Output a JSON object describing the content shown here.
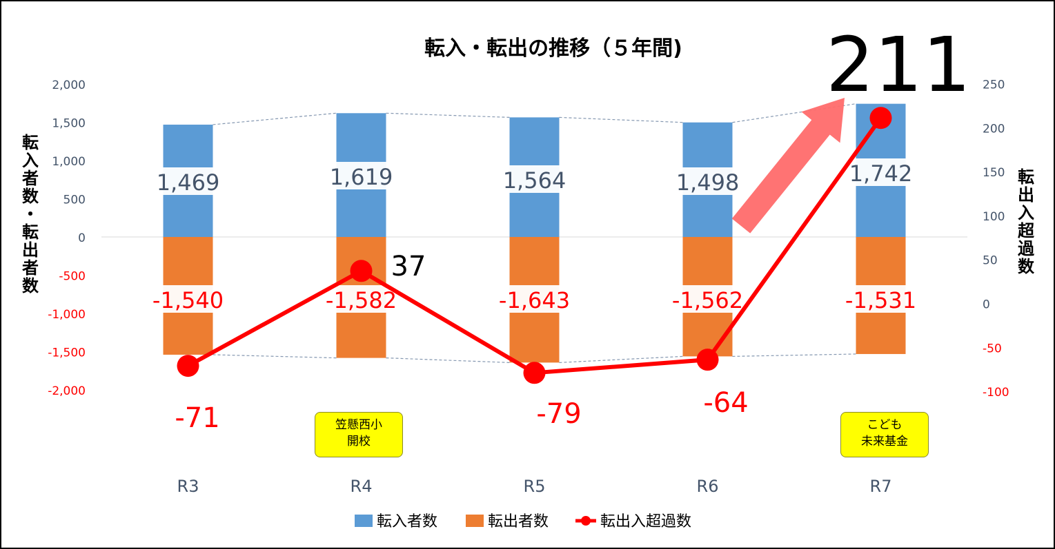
{
  "chart_data": {
    "type": "bar",
    "title": "転入・転出の推移（５年間)",
    "categories": [
      "R3",
      "R4",
      "R5",
      "R6",
      "R7"
    ],
    "series": [
      {
        "name": "転入者数",
        "type": "bar",
        "axis": "left",
        "color": "#5B9BD5",
        "values": [
          1469,
          1619,
          1564,
          1498,
          1742
        ]
      },
      {
        "name": "転出者数",
        "type": "bar",
        "axis": "left",
        "color": "#ED7D31",
        "values": [
          -1540,
          -1582,
          -1643,
          -1562,
          -1531
        ]
      },
      {
        "name": "転出入超過数",
        "type": "line",
        "axis": "right",
        "color": "#FF0000",
        "values": [
          -71,
          37,
          -79,
          -64,
          211
        ]
      }
    ],
    "y_left": {
      "title": "転入者数・転出者数",
      "range": [
        -2000,
        2000
      ],
      "ticks": [
        2000,
        1500,
        1000,
        500,
        0,
        -500,
        -1000,
        -1500,
        -2000
      ],
      "tick_labels": [
        "2,000",
        "1,500",
        "1,000",
        "500",
        "0",
        "-500",
        "-1,000",
        "-1,500",
        "-2,000"
      ]
    },
    "y_right": {
      "title": "転出入超過数",
      "range": [
        -100,
        250
      ],
      "ticks": [
        250,
        200,
        150,
        100,
        50,
        0,
        -50,
        -100
      ],
      "tick_labels": [
        "250",
        "200",
        "150",
        "100",
        "50",
        "0",
        "-50",
        "-100"
      ]
    },
    "bar_labels_in": [
      "1,469",
      "1,619",
      "1,564",
      "1,498",
      "1,742"
    ],
    "bar_labels_out": [
      "-1,540",
      "-1,582",
      "-1,643",
      "-1,562",
      "-1,531"
    ],
    "line_labels": [
      "-71",
      "37",
      "-79",
      "-64",
      "211"
    ],
    "grid": false,
    "legend_position": "bottom"
  },
  "annotations": {
    "callout_r4": [
      "笠懸西小",
      "開校"
    ],
    "callout_r7": [
      "こども",
      "未来基金"
    ]
  },
  "colors": {
    "inflow": "#5B9BD5",
    "outflow": "#ED7D31",
    "net": "#FF0000",
    "arrow": "#FF6B6B",
    "axis_text_positive": "#44546A",
    "axis_text_negative": "#FF0000",
    "callout_bg": "#FFFF00"
  }
}
